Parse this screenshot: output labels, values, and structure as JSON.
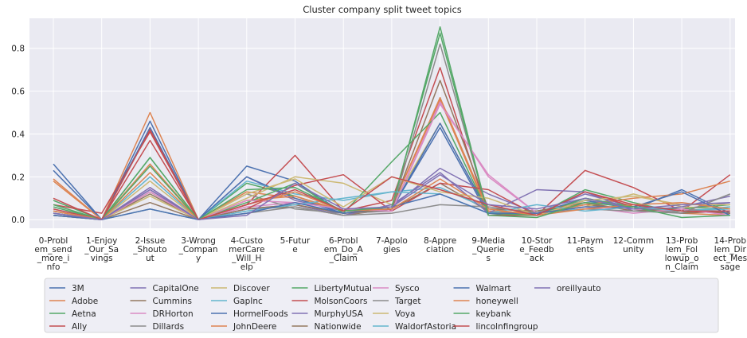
{
  "chart_data": {
    "type": "line",
    "title": "Cluster company split tweet topics",
    "xlabel": "",
    "ylabel": "",
    "ylim": [
      -0.04,
      0.94
    ],
    "yticks": [
      0.0,
      0.2,
      0.4,
      0.6,
      0.8
    ],
    "ytick_labels": [
      "0.0",
      "0.2",
      "0.4",
      "0.6",
      "0.8"
    ],
    "grid": true,
    "legend_position": "bottom",
    "categories": [
      "0-Problem_send_more_info",
      "1-Enjoy_Our_Savings",
      "2-Issue_Shoutout",
      "3-Wrong_Company",
      "4-CustomerCare_Will_Help",
      "5-Future",
      "6-Problem_Do_A_Claim",
      "7-Apologies",
      "8-Appreciation",
      "9-Media_Queries",
      "10-Store_Feedback",
      "11-Payments",
      "12-Community",
      "13-Problem_Followup_on_Claim",
      "14-Problem_Direct_Message"
    ],
    "category_label_lines": [
      [
        "0-Probl",
        "em_send",
        "_more_i",
        "nfo"
      ],
      [
        "1-Enjoy",
        "_Our_Sa",
        "vings"
      ],
      [
        "2-Issue",
        "_Shouto",
        "ut"
      ],
      [
        "3-Wrong",
        "_Compan",
        "y"
      ],
      [
        "4-Custo",
        "merCare",
        "_Will_H",
        "elp"
      ],
      [
        "5-Futur",
        "e"
      ],
      [
        "6-Probl",
        "em_Do_A",
        "_Claim"
      ],
      [
        "7-Apolo",
        "gies"
      ],
      [
        "8-Appre",
        "ciation"
      ],
      [
        "9-Media",
        "_Querie",
        "s"
      ],
      [
        "10-Stor",
        "e_Feedb",
        "ack"
      ],
      [
        "11-Paym",
        "ents"
      ],
      [
        "12-Comm",
        "unity"
      ],
      [
        "13-Prob",
        "lem_Fol",
        "lowup_o",
        "n_Claim"
      ],
      [
        "14-Prob",
        "lem_Dir",
        "ect_Mes",
        "sage"
      ]
    ],
    "series": [
      {
        "name": "3M",
        "color": "#4c72b0",
        "values": [
          0.26,
          0.0,
          0.46,
          0.0,
          0.25,
          0.18,
          0.03,
          0.05,
          0.43,
          0.02,
          0.03,
          0.1,
          0.06,
          0.04,
          0.03
        ]
      },
      {
        "name": "Adobe",
        "color": "#dd8452",
        "values": [
          0.19,
          0.0,
          0.5,
          0.0,
          0.13,
          0.1,
          0.04,
          0.06,
          0.56,
          0.03,
          0.02,
          0.08,
          0.07,
          0.03,
          0.02
        ]
      },
      {
        "name": "Aetna",
        "color": "#55a868",
        "values": [
          0.09,
          0.0,
          0.29,
          0.0,
          0.17,
          0.11,
          0.04,
          0.05,
          0.9,
          0.02,
          0.02,
          0.14,
          0.08,
          0.03,
          0.06
        ]
      },
      {
        "name": "Ally",
        "color": "#c44e52",
        "values": [
          0.07,
          0.03,
          0.41,
          0.0,
          0.07,
          0.3,
          0.04,
          0.09,
          0.71,
          0.02,
          0.02,
          0.23,
          0.15,
          0.04,
          0.21
        ]
      },
      {
        "name": "CapitalOne",
        "color": "#8172b3",
        "values": [
          0.05,
          0.0,
          0.14,
          0.0,
          0.2,
          0.09,
          0.04,
          0.06,
          0.24,
          0.12,
          0.03,
          0.12,
          0.06,
          0.05,
          0.08
        ]
      },
      {
        "name": "Cummins",
        "color": "#937860",
        "values": [
          0.03,
          0.0,
          0.12,
          0.0,
          0.05,
          0.06,
          0.02,
          0.05,
          0.17,
          0.04,
          0.03,
          0.07,
          0.05,
          0.03,
          0.04
        ]
      },
      {
        "name": "DRHorton",
        "color": "#da8bc3",
        "values": [
          0.04,
          0.0,
          0.15,
          0.0,
          0.06,
          0.08,
          0.03,
          0.04,
          0.55,
          0.2,
          0.03,
          0.06,
          0.05,
          0.04,
          0.03
        ]
      },
      {
        "name": "Dillards",
        "color": "#8c8c8c",
        "values": [
          0.03,
          0.0,
          0.13,
          0.0,
          0.12,
          0.05,
          0.03,
          0.04,
          0.82,
          0.03,
          0.02,
          0.09,
          0.06,
          0.03,
          0.12
        ]
      },
      {
        "name": "Discover",
        "color": "#ccb974",
        "values": [
          0.02,
          0.0,
          0.11,
          0.0,
          0.1,
          0.2,
          0.17,
          0.07,
          0.45,
          0.03,
          0.04,
          0.06,
          0.12,
          0.06,
          0.05
        ]
      },
      {
        "name": "GapInc",
        "color": "#64b5cd",
        "values": [
          0.03,
          0.0,
          0.2,
          0.0,
          0.18,
          0.12,
          0.09,
          0.13,
          0.15,
          0.05,
          0.04,
          0.08,
          0.07,
          0.04,
          0.06
        ]
      },
      {
        "name": "HormelFoods",
        "color": "#4c72b0",
        "values": [
          0.23,
          0.0,
          0.43,
          0.0,
          0.2,
          0.1,
          0.03,
          0.05,
          0.45,
          0.03,
          0.03,
          0.09,
          0.05,
          0.14,
          0.03
        ]
      },
      {
        "name": "JohnDeere",
        "color": "#dd8452",
        "values": [
          0.18,
          0.0,
          0.26,
          0.0,
          0.09,
          0.11,
          0.04,
          0.06,
          0.57,
          0.04,
          0.03,
          0.07,
          0.1,
          0.12,
          0.18
        ]
      },
      {
        "name": "LibertyMutual",
        "color": "#55a868",
        "values": [
          0.06,
          0.0,
          0.25,
          0.0,
          0.08,
          0.17,
          0.03,
          0.27,
          0.5,
          0.03,
          0.02,
          0.1,
          0.06,
          0.05,
          0.07
        ]
      },
      {
        "name": "MolsonCoors",
        "color": "#c44e52",
        "values": [
          0.05,
          0.0,
          0.37,
          0.0,
          0.05,
          0.16,
          0.21,
          0.04,
          0.17,
          0.14,
          0.02,
          0.13,
          0.06,
          0.04,
          0.03
        ]
      },
      {
        "name": "MurphyUSA",
        "color": "#8172b3",
        "values": [
          0.04,
          0.0,
          0.15,
          0.0,
          0.05,
          0.07,
          0.02,
          0.07,
          0.22,
          0.03,
          0.14,
          0.13,
          0.04,
          0.06,
          0.11
        ]
      },
      {
        "name": "Nationwide",
        "color": "#937860",
        "values": [
          0.02,
          0.0,
          0.08,
          0.0,
          0.05,
          0.07,
          0.03,
          0.05,
          0.65,
          0.05,
          0.04,
          0.08,
          0.04,
          0.05,
          0.03
        ]
      },
      {
        "name": "Sysco",
        "color": "#da8bc3",
        "values": [
          0.03,
          0.0,
          0.13,
          0.0,
          0.09,
          0.08,
          0.05,
          0.04,
          0.54,
          0.21,
          0.03,
          0.06,
          0.03,
          0.05,
          0.02
        ]
      },
      {
        "name": "Target",
        "color": "#8c8c8c",
        "values": [
          0.02,
          0.0,
          0.05,
          0.0,
          0.03,
          0.06,
          0.02,
          0.03,
          0.07,
          0.06,
          0.03,
          0.05,
          0.04,
          0.03,
          0.12
        ]
      },
      {
        "name": "Voya",
        "color": "#ccb974",
        "values": [
          0.04,
          0.0,
          0.18,
          0.0,
          0.12,
          0.19,
          0.06,
          0.2,
          0.13,
          0.1,
          0.02,
          0.09,
          0.11,
          0.07,
          0.07
        ]
      },
      {
        "name": "WaldorfAstoria",
        "color": "#64b5cd",
        "values": [
          0.03,
          0.0,
          0.05,
          0.0,
          0.04,
          0.07,
          0.1,
          0.13,
          0.12,
          0.03,
          0.07,
          0.04,
          0.06,
          0.04,
          0.05
        ]
      },
      {
        "name": "Walmart",
        "color": "#4c72b0",
        "values": [
          0.02,
          0.0,
          0.05,
          0.0,
          0.03,
          0.08,
          0.03,
          0.06,
          0.12,
          0.03,
          0.03,
          0.06,
          0.06,
          0.13,
          0.02
        ]
      },
      {
        "name": "honeywell",
        "color": "#dd8452",
        "values": [
          0.04,
          0.0,
          0.22,
          0.0,
          0.07,
          0.13,
          0.04,
          0.05,
          0.19,
          0.05,
          0.02,
          0.05,
          0.07,
          0.08,
          0.05
        ]
      },
      {
        "name": "keybank",
        "color": "#55a868",
        "values": [
          0.07,
          0.0,
          0.29,
          0.0,
          0.14,
          0.15,
          0.04,
          0.06,
          0.87,
          0.02,
          0.01,
          0.08,
          0.06,
          0.01,
          0.02
        ]
      },
      {
        "name": "lincolnfingroup",
        "color": "#c44e52",
        "values": [
          0.1,
          0.0,
          0.42,
          0.0,
          0.07,
          0.14,
          0.04,
          0.2,
          0.14,
          0.07,
          0.02,
          0.13,
          0.07,
          0.04,
          0.04
        ]
      },
      {
        "name": "oreillyauto",
        "color": "#8172b3",
        "values": [
          0.03,
          0.0,
          0.14,
          0.0,
          0.02,
          0.17,
          0.05,
          0.06,
          0.21,
          0.07,
          0.05,
          0.1,
          0.05,
          0.07,
          0.08
        ]
      }
    ]
  }
}
